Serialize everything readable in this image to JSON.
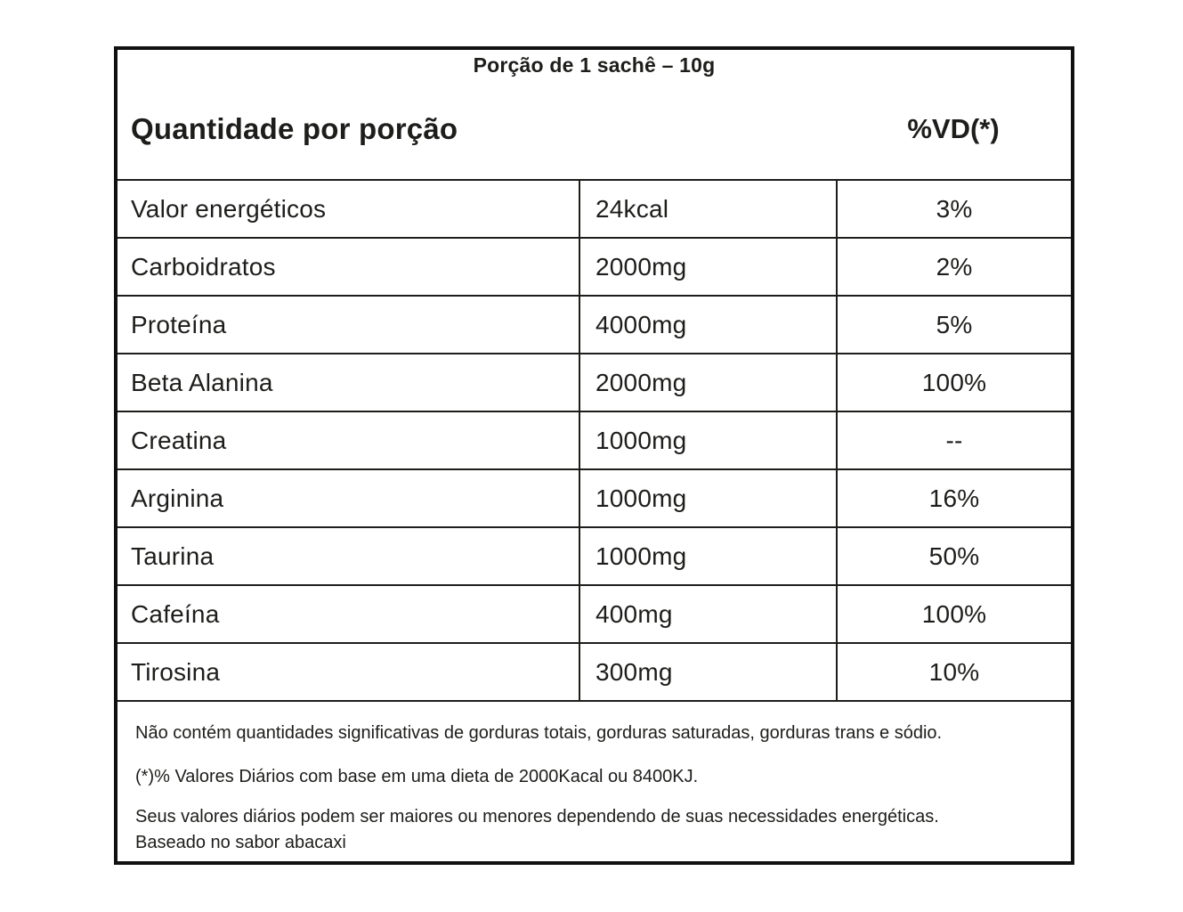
{
  "label": {
    "serving_title": "Porção de 1 sachê – 10g",
    "header": {
      "quantity": "Quantidade por porção",
      "daily_value": "%VD(*)"
    },
    "table": {
      "rows": [
        {
          "name": "Valor energéticos",
          "amount": "24kcal",
          "dv": "3%"
        },
        {
          "name": "Carboidratos",
          "amount": "2000mg",
          "dv": "2%"
        },
        {
          "name": "Proteína",
          "amount": "4000mg",
          "dv": "5%"
        },
        {
          "name": "Beta Alanina",
          "amount": "2000mg",
          "dv": "100%"
        },
        {
          "name": "Creatina",
          "amount": "1000mg",
          "dv": "--"
        },
        {
          "name": "Arginina",
          "amount": "1000mg",
          "dv": "16%"
        },
        {
          "name": "Taurina",
          "amount": "1000mg",
          "dv": "50%"
        },
        {
          "name": "Cafeína",
          "amount": "400mg",
          "dv": "100%"
        },
        {
          "name": "Tirosina",
          "amount": "300mg",
          "dv": "10%"
        }
      ]
    },
    "notes": [
      "Não contém quantidades significativas de gorduras totais, gorduras saturadas, gorduras trans e sódio.",
      "(*)% Valores Diários com base em uma dieta de 2000Kacal ou 8400KJ.",
      "Seus valores diários podem ser maiores ou menores dependendo de suas necessidades energéticas.",
      "Baseado no sabor abacaxi"
    ],
    "colors": {
      "text": "#1d1d1b",
      "border": "#111111",
      "background": "#ffffff"
    }
  }
}
